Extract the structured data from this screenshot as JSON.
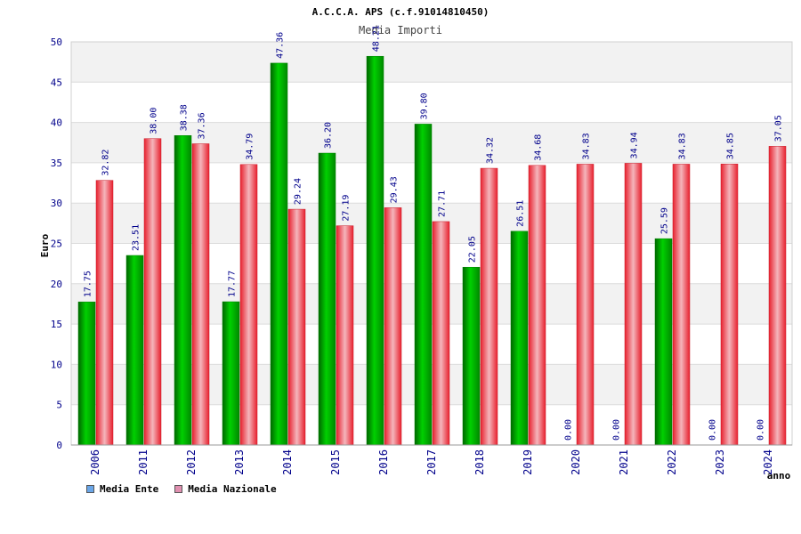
{
  "chart_data": {
    "type": "bar",
    "title": "A.C.C.A. APS (c.f.91014810450)",
    "subtitle": "Media Importi",
    "xlabel": "anno",
    "ylabel": "Euro",
    "ylim": [
      0,
      50
    ],
    "yticks": [
      0,
      5,
      10,
      15,
      20,
      25,
      30,
      35,
      40,
      45,
      50
    ],
    "categories": [
      "2006",
      "2011",
      "2012",
      "2013",
      "2014",
      "2015",
      "2016",
      "2017",
      "2018",
      "2019",
      "2020",
      "2021",
      "2022",
      "2023",
      "2024"
    ],
    "series": [
      {
        "name": "Media Ente",
        "color": "#00aa00",
        "values": [
          17.75,
          23.51,
          38.38,
          17.77,
          47.36,
          36.2,
          48.21,
          39.8,
          22.05,
          26.51,
          0.0,
          0.0,
          25.59,
          0.0,
          0.0
        ],
        "labels": [
          "17.75",
          "23.51",
          "38.38",
          "17.77",
          "47.36",
          "36.20",
          "48.21",
          "39.80",
          "22.05",
          "26.51",
          "0.00",
          "0.00",
          "25.59",
          "0.00",
          "0.00"
        ]
      },
      {
        "name": "Media Nazionale",
        "color": "#e8202e",
        "values": [
          32.82,
          38.0,
          37.36,
          34.79,
          29.24,
          27.19,
          29.43,
          27.71,
          34.32,
          34.68,
          34.83,
          34.94,
          34.83,
          34.85,
          37.05
        ],
        "labels": [
          "32.82",
          "38.00",
          "37.36",
          "34.79",
          "29.24",
          "27.19",
          "29.43",
          "27.71",
          "34.32",
          "34.68",
          "34.83",
          "34.94",
          "34.83",
          "34.85",
          "37.05"
        ]
      }
    ],
    "legend_position": "bottom-left",
    "grid": true,
    "band_color": "#f2f2f2",
    "axis_label_color": "#00008b"
  },
  "legend": {
    "items": [
      {
        "label": "Media Ente",
        "color": "#6aa6e8"
      },
      {
        "label": "Media Nazionale",
        "color": "#e090b0"
      }
    ]
  }
}
